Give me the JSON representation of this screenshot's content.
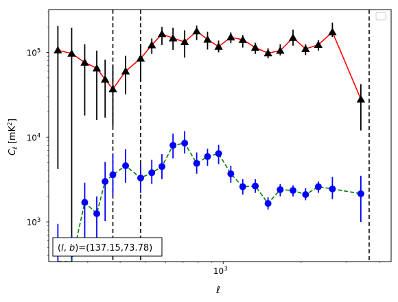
{
  "chart_data": {
    "type": "line",
    "title": "",
    "xlabel": "ℓ",
    "ylabel_text": "C",
    "ylabel_sub": "ℓ",
    "ylabel_unit": "[mK",
    "ylabel_unit_sup": "2",
    "ylabel_unit_close": "]",
    "x_scale": "log",
    "y_scale": "log",
    "xlim": [
      212,
      4450
    ],
    "ylim": [
      340,
      320000
    ],
    "x_ticks": [
      {
        "value": 1000,
        "base": "10",
        "exp": "3"
      }
    ],
    "y_ticks": [
      {
        "value": 1000,
        "base": "10",
        "exp": "3"
      },
      {
        "value": 10000,
        "base": "10",
        "exp": "4"
      },
      {
        "value": 100000,
        "base": "10",
        "exp": "5"
      }
    ],
    "vlines": [
      375,
      480,
      3660
    ],
    "annotation": {
      "prefix": "(",
      "l": "l",
      "comma": ", ",
      "b": "b",
      "suffix": ")=(137.15,73.78)"
    },
    "legend": {
      "placement": "upper right",
      "entries": []
    },
    "series": [
      {
        "marker": "triangle",
        "marker_color": "#000000",
        "errorbar_color": "#000000",
        "line_color": "#ff0000",
        "line_style": "solid",
        "points": [
          {
            "x": 230,
            "y": 106000,
            "lo": 4200,
            "hi": 205000
          },
          {
            "x": 260,
            "y": 97000,
            "lo": 340,
            "hi": 195000
          },
          {
            "x": 292,
            "y": 76000,
            "lo": 18000,
            "hi": 125000
          },
          {
            "x": 325,
            "y": 65000,
            "lo": 16000,
            "hi": 105000
          },
          {
            "x": 350,
            "y": 48000,
            "lo": 17000,
            "hi": 82000
          },
          {
            "x": 375,
            "y": 37000,
            "lo": 13500,
            "hi": 70000
          },
          {
            "x": 420,
            "y": 60000,
            "lo": 32000,
            "hi": 91000
          },
          {
            "x": 480,
            "y": 85000,
            "lo": 45000,
            "hi": 122000
          },
          {
            "x": 530,
            "y": 122000,
            "lo": 96000,
            "hi": 146000
          },
          {
            "x": 580,
            "y": 165000,
            "lo": 122000,
            "hi": 200000
          },
          {
            "x": 640,
            "y": 147000,
            "lo": 107000,
            "hi": 195000
          },
          {
            "x": 710,
            "y": 133000,
            "lo": 87000,
            "hi": 182000
          },
          {
            "x": 790,
            "y": 178000,
            "lo": 140000,
            "hi": 207000
          },
          {
            "x": 870,
            "y": 142000,
            "lo": 108000,
            "hi": 175000
          },
          {
            "x": 960,
            "y": 117000,
            "lo": 100000,
            "hi": 138000
          },
          {
            "x": 1070,
            "y": 151000,
            "lo": 128000,
            "hi": 172000
          },
          {
            "x": 1190,
            "y": 141000,
            "lo": 114000,
            "hi": 160000
          },
          {
            "x": 1330,
            "y": 114000,
            "lo": 96000,
            "hi": 130000
          },
          {
            "x": 1490,
            "y": 98000,
            "lo": 85000,
            "hi": 112000
          },
          {
            "x": 1660,
            "y": 105000,
            "lo": 92000,
            "hi": 125000
          },
          {
            "x": 1860,
            "y": 149000,
            "lo": 120000,
            "hi": 185000
          },
          {
            "x": 2080,
            "y": 110000,
            "lo": 93000,
            "hi": 125000
          },
          {
            "x": 2330,
            "y": 123000,
            "lo": 105000,
            "hi": 140000
          },
          {
            "x": 2640,
            "y": 174000,
            "lo": 152000,
            "hi": 225000
          },
          {
            "x": 3400,
            "y": 28000,
            "lo": 12000,
            "hi": 42000
          }
        ]
      },
      {
        "marker": "circle",
        "marker_color": "#0000ff",
        "errorbar_color": "#0000ff",
        "line_color": "#008000",
        "line_style": "dashed",
        "points": [
          {
            "x": 230,
            "y": 250,
            "lo": 150,
            "hi": 950
          },
          {
            "x": 260,
            "y": 330,
            "lo": 150,
            "hi": 700
          },
          {
            "x": 292,
            "y": 1700,
            "lo": 580,
            "hi": 2900
          },
          {
            "x": 325,
            "y": 1250,
            "lo": 600,
            "hi": 2000
          },
          {
            "x": 350,
            "y": 3000,
            "lo": 1020,
            "hi": 5100
          },
          {
            "x": 375,
            "y": 3600,
            "lo": 2050,
            "hi": 6200
          },
          {
            "x": 420,
            "y": 4600,
            "lo": 2900,
            "hi": 7200
          },
          {
            "x": 480,
            "y": 3300,
            "lo": 2200,
            "hi": 4800
          },
          {
            "x": 530,
            "y": 3800,
            "lo": 2800,
            "hi": 5400
          },
          {
            "x": 580,
            "y": 4500,
            "lo": 3200,
            "hi": 6300
          },
          {
            "x": 640,
            "y": 8000,
            "lo": 5600,
            "hi": 11000
          },
          {
            "x": 710,
            "y": 8500,
            "lo": 6400,
            "hi": 11800
          },
          {
            "x": 790,
            "y": 4900,
            "lo": 3700,
            "hi": 6600
          },
          {
            "x": 870,
            "y": 5900,
            "lo": 4600,
            "hi": 7300
          },
          {
            "x": 960,
            "y": 6400,
            "lo": 4800,
            "hi": 8100
          },
          {
            "x": 1070,
            "y": 3700,
            "lo": 2900,
            "hi": 4600
          },
          {
            "x": 1190,
            "y": 2600,
            "lo": 2100,
            "hi": 3200
          },
          {
            "x": 1330,
            "y": 2650,
            "lo": 2200,
            "hi": 3200
          },
          {
            "x": 1490,
            "y": 1650,
            "lo": 1400,
            "hi": 1950
          },
          {
            "x": 1660,
            "y": 2400,
            "lo": 2000,
            "hi": 2800
          },
          {
            "x": 1860,
            "y": 2350,
            "lo": 2000,
            "hi": 2700
          },
          {
            "x": 2080,
            "y": 2100,
            "lo": 1800,
            "hi": 2500
          },
          {
            "x": 2330,
            "y": 2600,
            "lo": 2200,
            "hi": 3000
          },
          {
            "x": 2640,
            "y": 2450,
            "lo": 1850,
            "hi": 3400
          },
          {
            "x": 3400,
            "y": 2150,
            "lo": 1000,
            "hi": 3500
          }
        ]
      }
    ]
  }
}
